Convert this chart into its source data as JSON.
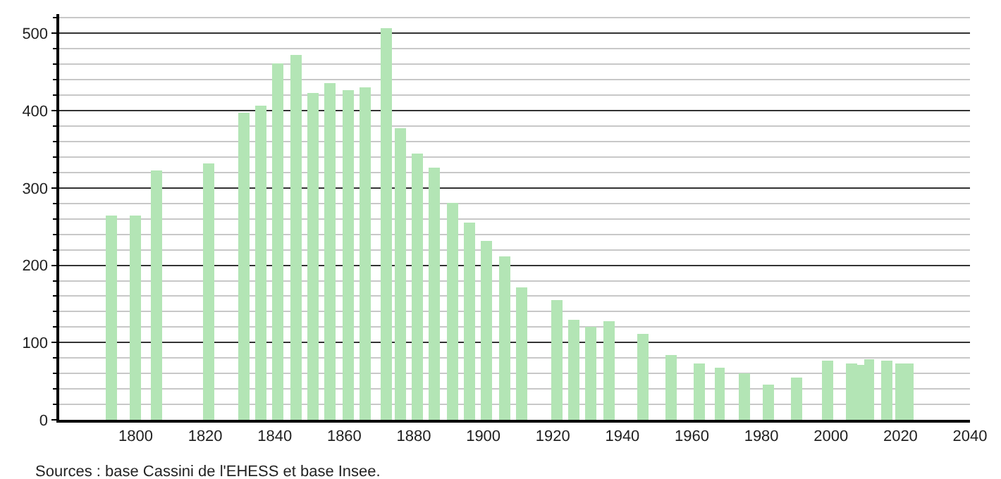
{
  "chart_data": {
    "type": "bar",
    "x": [
      1793,
      1800,
      1806,
      1821,
      1831,
      1836,
      1841,
      1846,
      1851,
      1856,
      1861,
      1866,
      1872,
      1876,
      1881,
      1886,
      1891,
      1896,
      1901,
      1906,
      1911,
      1921,
      1926,
      1931,
      1936,
      1946,
      1954,
      1962,
      1968,
      1975,
      1982,
      1990,
      1999,
      2006,
      2008,
      2011,
      2016,
      2020,
      2022
    ],
    "values": [
      264,
      264,
      322,
      331,
      397,
      406,
      462,
      472,
      423,
      435,
      426,
      430,
      507,
      378,
      345,
      327,
      280,
      255,
      232,
      212,
      171,
      155,
      130,
      120,
      128,
      112,
      84,
      73,
      68,
      60,
      45,
      55,
      77,
      73,
      71,
      79,
      77,
      73,
      73
    ],
    "color": "#b3e5b5",
    "xlim": [
      1778,
      2040
    ],
    "xticks": [
      1800,
      1820,
      1840,
      1860,
      1880,
      1900,
      1920,
      1940,
      1960,
      1980,
      2000,
      2020,
      2040
    ],
    "ylim": [
      0,
      525
    ],
    "yticks": [
      0,
      {
        "value": 20,
        "label": null
      },
      {
        "value": 40,
        "label": null
      },
      {
        "value": 60,
        "label": null
      },
      {
        "value": 80,
        "label": null
      },
      100,
      {
        "value": 120,
        "label": null
      },
      {
        "value": 140,
        "label": null
      },
      {
        "value": 160,
        "label": null
      },
      {
        "value": 180,
        "label": null
      },
      200,
      {
        "value": 220,
        "label": null
      },
      {
        "value": 240,
        "label": null
      },
      {
        "value": 260,
        "label": null
      },
      {
        "value": 280,
        "label": null
      },
      300,
      {
        "value": 320,
        "label": null
      },
      {
        "value": 340,
        "label": null
      },
      {
        "value": 360,
        "label": null
      },
      {
        "value": 380,
        "label": null
      },
      400,
      {
        "value": 420,
        "label": null
      },
      {
        "value": 440,
        "label": null
      },
      {
        "value": 460,
        "label": null
      },
      {
        "value": 480,
        "label": null
      },
      500,
      {
        "value": 520,
        "label": null
      }
    ],
    "grid": "y",
    "annotations": [
      "Sources : base Cassini de l'EHESS et base Insee."
    ]
  }
}
